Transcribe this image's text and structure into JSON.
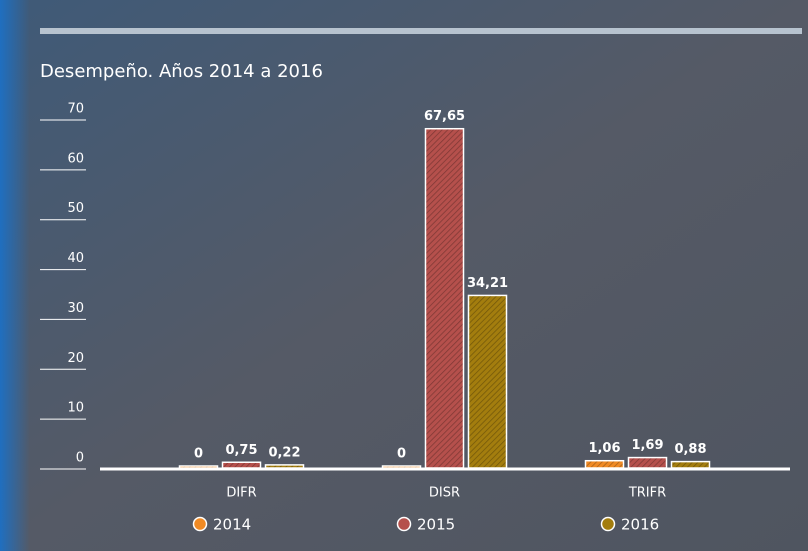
{
  "chart_data": {
    "type": "bar",
    "title": "Desempeño. Años 2014 a 2016",
    "categories": [
      "DIFR",
      "DISR",
      "TRIFR"
    ],
    "series": [
      {
        "name": "2014",
        "color": "#f08a24",
        "values": [
          0,
          0,
          1.06
        ],
        "value_labels": [
          "0",
          "0",
          "1,06"
        ]
      },
      {
        "name": "2015",
        "color": "#b5504c",
        "values": [
          0.75,
          67.65,
          1.69
        ],
        "value_labels": [
          "0,75",
          "67,65",
          "1,69"
        ]
      },
      {
        "name": "2016",
        "color": "#a37d0e",
        "values": [
          0.22,
          34.21,
          0.88
        ],
        "value_labels": [
          "0,22",
          "34,21",
          "0,88"
        ]
      }
    ],
    "ylim": [
      0,
      70
    ],
    "yticks": [
      0,
      10,
      20,
      30,
      40,
      50,
      60,
      70
    ],
    "legend": "bottom"
  }
}
